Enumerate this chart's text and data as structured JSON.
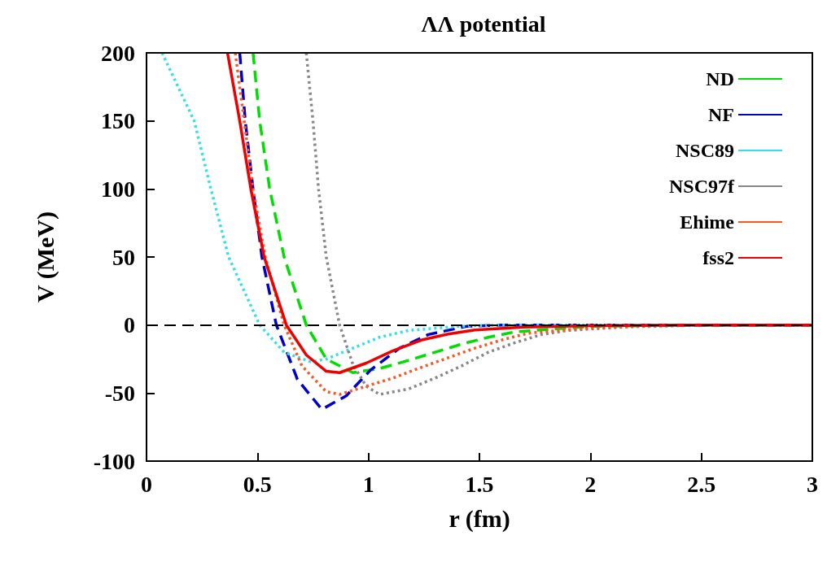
{
  "chart_data": {
    "type": "line",
    "title": "ΛΛ potential",
    "xlabel": "r (fm)",
    "ylabel": "V (MeV)",
    "xlim": [
      0,
      3
    ],
    "xticks": [
      0,
      0.5,
      1,
      1.5,
      2,
      2.5,
      3
    ],
    "ylim": [
      -100,
      200
    ],
    "yticks": [
      -100,
      -50,
      0,
      50,
      100,
      150,
      200
    ],
    "grid": false,
    "legend": "top right",
    "marker": "none",
    "ref_lines": [
      {
        "axis": "y",
        "value": 0,
        "color": "#000000",
        "line_style": "dashed"
      }
    ],
    "series": [
      {
        "name": "ND",
        "color": "#00dd00",
        "line_style": "dashed",
        "x": [
          0.48,
          0.51,
          0.555,
          0.62,
          0.72,
          0.81,
          0.93,
          1.05,
          1.18,
          1.3,
          1.42,
          1.54,
          1.66,
          2.0,
          2.5,
          3.0
        ],
        "values": [
          200,
          150,
          100,
          50,
          0,
          -25,
          -35,
          -32,
          -26,
          -20,
          -14,
          -9,
          -5,
          -1,
          0,
          0
        ]
      },
      {
        "name": "NF",
        "color": "#0000cc",
        "line_style": "dashed",
        "x": [
          0.42,
          0.445,
          0.48,
          0.52,
          0.585,
          0.68,
          0.79,
          0.9,
          1.01,
          1.14,
          1.27,
          1.44,
          1.6,
          2.0,
          3.0
        ],
        "values": [
          200,
          150,
          100,
          50,
          0,
          -40,
          -62,
          -52,
          -33,
          -17,
          -7,
          -1,
          0,
          0,
          0
        ]
      },
      {
        "name": "NSC89",
        "color": "#33e0e8",
        "line_style": "dotted",
        "x": [
          0.07,
          0.215,
          0.29,
          0.37,
          0.51,
          0.62,
          0.74,
          0.81,
          0.93,
          1.05,
          1.18,
          1.4,
          1.6,
          2.0,
          3.0
        ],
        "values": [
          200,
          150,
          100,
          50,
          0,
          -20,
          -27,
          -25,
          -17,
          -9,
          -4,
          -1,
          0,
          0,
          0
        ]
      },
      {
        "name": "NSC97f",
        "color": "#888888",
        "line_style": "dotted",
        "x": [
          0.72,
          0.75,
          0.775,
          0.81,
          0.87,
          0.93,
          0.99,
          1.05,
          1.18,
          1.3,
          1.42,
          1.54,
          1.66,
          1.78,
          1.9,
          2.2,
          2.6,
          3.0
        ],
        "values": [
          200,
          150,
          100,
          50,
          0,
          -29,
          -45,
          -51,
          -47,
          -39,
          -30,
          -20,
          -13,
          -7,
          -4,
          -1,
          0,
          0
        ]
      },
      {
        "name": "Ehime",
        "color": "#ff5522",
        "line_style": "dotted",
        "x": [
          0.4,
          0.44,
          0.48,
          0.535,
          0.62,
          0.7,
          0.81,
          0.87,
          0.99,
          1.11,
          1.24,
          1.36,
          1.48,
          1.6,
          1.72,
          2.0,
          2.5,
          3.0
        ],
        "values": [
          200,
          150,
          100,
          50,
          0,
          -30,
          -49,
          -51,
          -45,
          -39,
          -31,
          -24,
          -17,
          -11,
          -6,
          -2,
          0,
          0
        ]
      },
      {
        "name": "fss2",
        "color": "#ee0000",
        "line_style": "solid",
        "x": [
          0.365,
          0.42,
          0.47,
          0.53,
          0.63,
          0.72,
          0.81,
          0.87,
          0.99,
          1.11,
          1.24,
          1.36,
          1.48,
          1.7,
          2.0,
          2.5,
          3.0
        ],
        "values": [
          200,
          150,
          100,
          50,
          0,
          -22,
          -34,
          -35,
          -28,
          -19,
          -11,
          -6.6,
          -3.6,
          -1.5,
          -0.5,
          0,
          0
        ]
      }
    ]
  }
}
